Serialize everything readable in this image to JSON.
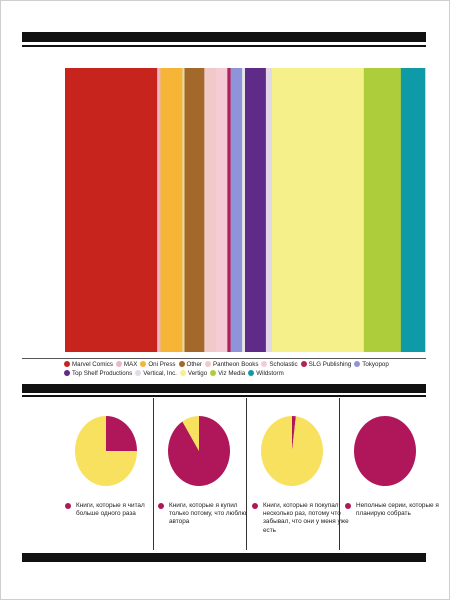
{
  "chart_data": [
    {
      "type": "bar",
      "orientation": "stacked-horizontal-100",
      "series": [
        {
          "name": "Marvel Comics",
          "value": 25.6,
          "color": "#c8241e"
        },
        {
          "name": "MAX",
          "value": 0.9,
          "color": "#e9b7c9"
        },
        {
          "name": "Oni Press",
          "value": 6.1,
          "color": "#f7b537"
        },
        {
          "name": "Other",
          "value": 0.6,
          "color": "#e6d9a6"
        },
        {
          "name": "Pantheon Books",
          "value": 5.5,
          "color": "#a3692a"
        },
        {
          "name": "Scholastic",
          "value": 3.2,
          "color": "#f2c9c9"
        },
        {
          "name": "SLG Publishing",
          "value": 3.2,
          "color": "#f5cbd5"
        },
        {
          "name": "Tokyopop",
          "value": 0.9,
          "color": "#b1225a"
        },
        {
          "name": "Top Shelf Productions",
          "value": 3.2,
          "color": "#8f93d9"
        },
        {
          "name": "Vertical, Inc.",
          "value": 0.8,
          "color": "#e7e6e6"
        },
        {
          "name": "Vertigo",
          "value": 5.8,
          "color": "#5e2b89"
        },
        {
          "name": "Viz Media",
          "value": 1.7,
          "color": "#e2d8e8"
        },
        {
          "name": "Wildstorm",
          "value": 25.5,
          "color": "#f6f08a"
        },
        {
          "name": "_",
          "value": 10.3,
          "color": "#aecd3b"
        },
        {
          "name": "_",
          "value": 6.7,
          "color": "#0f9aa7"
        }
      ]
    },
    {
      "type": "pie",
      "slices": [
        {
          "value": 25,
          "color": "#b0175a"
        },
        {
          "value": 75,
          "color": "#f7e15f"
        }
      ],
      "label": "Книги, которые я читал больше одного раза",
      "label_color": "#b0175a"
    },
    {
      "type": "pie",
      "slices": [
        {
          "value": 91,
          "color": "#b0175a"
        },
        {
          "value": 9,
          "color": "#f7e15f"
        }
      ],
      "label": "Книги, которые я купил только потому, что люблю автора",
      "label_color": "#b0175a"
    },
    {
      "type": "pie",
      "slices": [
        {
          "value": 2,
          "color": "#b0175a"
        },
        {
          "value": 98,
          "color": "#f7e15f"
        }
      ],
      "label": "Книги, которые я покупал несколько раз, потому что забывал, что они у меня уже есть",
      "label_color": "#b0175a"
    },
    {
      "type": "pie",
      "slices": [
        {
          "value": 100,
          "color": "#b0175a"
        }
      ],
      "label": "Неполные серии, которые я планирую собрать",
      "label_color": "#b0175a"
    }
  ],
  "legend": {
    "rows": [
      [
        {
          "label": "Marvel Comics",
          "color": "#c8241e"
        },
        {
          "label": "MAX",
          "color": "#e9b7c9"
        },
        {
          "label": "Oni Press",
          "color": "#f7b537"
        },
        {
          "label": "Other",
          "color": "#a3692a"
        },
        {
          "label": "Pantheon Books",
          "color": "#f2c9c9"
        },
        {
          "label": "Scholastic",
          "color": "#f5cbd5"
        },
        {
          "label": "SLG Publishing",
          "color": "#b1225a"
        },
        {
          "label": "Tokyopop",
          "color": "#8f93d9"
        }
      ],
      [
        {
          "label": "Top Shelf Productions",
          "color": "#5e2b89"
        },
        {
          "label": "Vertical, Inc.",
          "color": "#e2d8e8"
        },
        {
          "label": "Vertigo",
          "color": "#f6f08a"
        },
        {
          "label": "Viz Media",
          "color": "#aecd3b"
        },
        {
          "label": "Wildstorm",
          "color": "#0f9aa7"
        }
      ]
    ]
  }
}
